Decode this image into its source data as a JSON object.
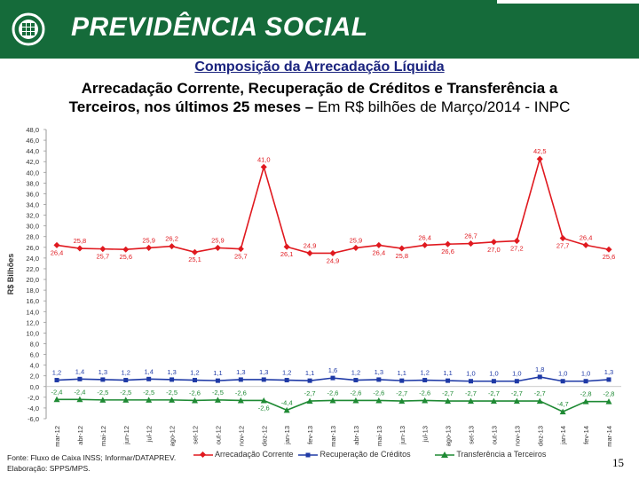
{
  "header": {
    "brand": "PREVIDÊNCIA SOCIAL"
  },
  "titles": {
    "line1": "Composição da Arrecadação Líquida",
    "line2": "Arrecadação Corrente, Recuperação de Créditos e Transferência a",
    "line3_bold": "Terceiros, nos últimos 25 meses –",
    "line3_rest": " Em R$ bilhões de Março/2014 - INPC"
  },
  "footer": {
    "source": "Fonte: Fluxo de Caixa INSS; Informar/DATAPREV.",
    "elaboration": "Elaboração: SPPS/MPS.",
    "page_number": "15"
  },
  "colors": {
    "header_bg": "#156b3a",
    "corrente": "#e0191f",
    "recuperacao": "#1f3aa6",
    "transferencia": "#1f8a34"
  },
  "chart_data": {
    "type": "line",
    "ylabel": "R$ Bilhões",
    "ylim": [
      -6,
      48
    ],
    "ytick_step": 2,
    "ytick_labels": [
      "-6,0",
      "-4,0",
      "-2,0",
      "0,0",
      "2,0",
      "4,0",
      "6,0",
      "8,0",
      "10,0",
      "12,0",
      "14,0",
      "16,0",
      "18,0",
      "20,0",
      "22,0",
      "24,0",
      "26,0",
      "28,0",
      "30,0",
      "32,0",
      "34,0",
      "36,0",
      "38,0",
      "40,0",
      "42,0",
      "44,0",
      "46,0",
      "48,0"
    ],
    "categories": [
      "mar-12",
      "abr-12",
      "mai-12",
      "jun-12",
      "jul-12",
      "ago-12",
      "set-12",
      "out-12",
      "nov-12",
      "dez-12",
      "jan-13",
      "fev-13",
      "mar-13",
      "abr-13",
      "mai-13",
      "jun-13",
      "jul-13",
      "ago-13",
      "set-13",
      "out-13",
      "nov-13",
      "dez-13",
      "jan-14",
      "fev-14",
      "mar-14"
    ],
    "series": [
      {
        "name": "Arrecadação Corrente",
        "marker": "diamond",
        "values": [
          26.4,
          25.8,
          25.7,
          25.6,
          25.9,
          26.2,
          25.1,
          25.9,
          25.7,
          41.0,
          26.1,
          24.9,
          24.9,
          25.9,
          26.4,
          25.8,
          26.4,
          26.6,
          26.7,
          27.0,
          27.2,
          42.5,
          27.7,
          26.4,
          25.6
        ],
        "labels": [
          "26,4",
          "25,8",
          "25,7",
          "25,6",
          "25,9",
          "26,2",
          "25,1",
          "25,9",
          "25,7",
          "41,0",
          "26,1",
          "24,9",
          "24,9",
          "25,9",
          "26,4",
          "25,8",
          "26,4",
          "26,6",
          "26,7",
          "27,0",
          "27,2",
          "42,5",
          "27,7",
          "26,4",
          "25,6"
        ],
        "label_pos": [
          "below",
          "above",
          "below",
          "below",
          "above",
          "above",
          "below",
          "above",
          "below",
          "above",
          "below",
          "above",
          "below",
          "above",
          "below",
          "below",
          "above",
          "below",
          "above",
          "below",
          "below",
          "above",
          "below",
          "above",
          "below"
        ]
      },
      {
        "name": "Recuperação de Créditos",
        "marker": "square",
        "values": [
          1.2,
          1.4,
          1.3,
          1.2,
          1.4,
          1.3,
          1.2,
          1.1,
          1.3,
          1.3,
          1.2,
          1.1,
          1.6,
          1.2,
          1.3,
          1.1,
          1.2,
          1.1,
          1.0,
          1.0,
          1.0,
          1.8,
          1.0,
          1.0,
          1.3
        ],
        "labels": [
          "1,2",
          "1,4",
          "1,3",
          "1,2",
          "1,4",
          "1,3",
          "1,2",
          "1,1",
          "1,3",
          "1,3",
          "1,2",
          "1,1",
          "1,6",
          "1,2",
          "1,3",
          "1,1",
          "1,2",
          "1,1",
          "1,0",
          "1,0",
          "1,0",
          "1,8",
          "1,0",
          "1,0",
          "1,3"
        ]
      },
      {
        "name": "Transferência a Terceiros",
        "marker": "triangle",
        "values": [
          -2.4,
          -2.4,
          -2.5,
          -2.5,
          -2.5,
          -2.5,
          -2.6,
          -2.5,
          -2.6,
          -2.6,
          -4.4,
          -2.7,
          -2.6,
          -2.6,
          -2.6,
          -2.7,
          -2.6,
          -2.7,
          -2.7,
          -2.7,
          -2.7,
          -2.7,
          -4.7,
          -2.8,
          -2.8
        ],
        "labels": [
          "-2,4",
          "-2,4",
          "-2,5",
          "-2,5",
          "-2,5",
          "-2,5",
          "-2,6",
          "-2,5",
          "-2,6",
          "-2,6",
          "-4,4",
          "-2,7",
          "-2,6",
          "-2,6",
          "-2,6",
          "-2,7",
          "-2,6",
          "-2,7",
          "-2,7",
          "-2,7",
          "-2,7",
          "-2,7",
          "-4,7",
          "-2,8",
          "-2,8"
        ],
        "label_pos": [
          "above",
          "above",
          "above",
          "above",
          "above",
          "above",
          "above",
          "above",
          "above",
          "below",
          "above",
          "above",
          "above",
          "above",
          "above",
          "above",
          "above",
          "above",
          "above",
          "above",
          "above",
          "above",
          "above",
          "above",
          "above"
        ]
      }
    ],
    "legend": [
      "Arrecadação Corrente",
      "Recuperação de Créditos",
      "Transferência a Terceiros"
    ],
    "legend_position": "bottom",
    "grid": false
  }
}
